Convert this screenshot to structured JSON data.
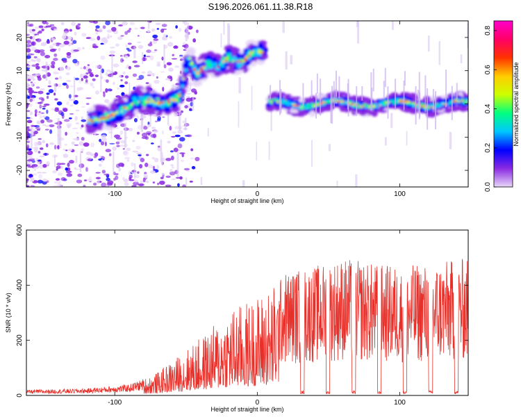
{
  "title": "S196.2026.061.11.38.R18",
  "chart_data": [
    {
      "type": "heatmap",
      "xlabel": "Height of straight line (km)",
      "ylabel": "Frequency (Hz)",
      "xlim": [
        -162,
        148
      ],
      "ylim": [
        -25,
        25
      ],
      "xticks": [
        "-100",
        "0",
        "100"
      ],
      "yticks": [
        "20",
        "10",
        "0",
        "-10",
        "-20"
      ],
      "colorbar": {
        "label": "Normalized spectral amplitude",
        "range": [
          0.0,
          0.85
        ],
        "ticks": [
          "0.0",
          "0.2",
          "0.4",
          "0.6",
          "0.8"
        ],
        "colors": [
          "#e8d8f8",
          "#8a2be2",
          "#0000ff",
          "#00c8ff",
          "#00ff80",
          "#ccff00",
          "#ffcc00",
          "#ff3300",
          "#ff0066",
          "#ff00cc"
        ]
      },
      "ridge": {
        "x": [
          -118,
          -105,
          -95,
          -85,
          -75,
          -65,
          -55,
          -48,
          -42,
          -35,
          -28,
          -20,
          -12,
          -5,
          0,
          5
        ],
        "freq": [
          -5,
          -4,
          -2,
          1,
          1,
          0,
          2,
          14,
          9,
          12,
          11,
          14,
          12,
          15,
          16,
          15
        ]
      },
      "band": {
        "x_start": 8,
        "x_end": 148,
        "freq": 0
      }
    },
    {
      "type": "line",
      "xlabel": "Height of straight line (km)",
      "ylabel": "SNR (10 * v/v)",
      "xlim": [
        -162,
        148
      ],
      "ylim": [
        0,
        600
      ],
      "xticks": [
        "-100",
        "0",
        "100"
      ],
      "yticks": [
        "600",
        "400",
        "200",
        "0"
      ],
      "color": "#e8302a",
      "envelope": {
        "x": [
          -162,
          -120,
          -90,
          -70,
          -50,
          -35,
          -20,
          -5,
          10,
          20,
          40,
          60,
          80,
          100,
          120,
          148
        ],
        "y": [
          20,
          25,
          40,
          80,
          160,
          220,
          300,
          330,
          380,
          450,
          470,
          500,
          480,
          470,
          480,
          500
        ]
      }
    }
  ]
}
